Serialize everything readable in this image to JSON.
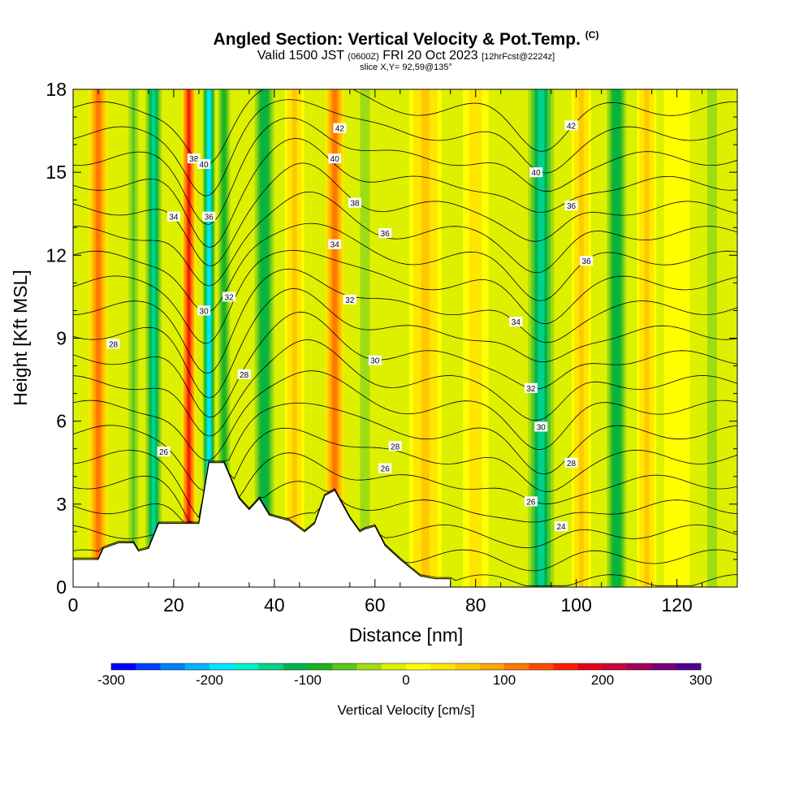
{
  "title": {
    "main": "Angled Section: Vertical Velocity & Pot.Temp.",
    "main_suffix": "(C)",
    "valid_pre": "Valid 1500 JST",
    "valid_z": "(0600Z)",
    "valid_date": "FRI 20 Oct 2023",
    "valid_fcst": "[12hrFcst@2224z]",
    "slice": "slice X,Y= 92,59@135°"
  },
  "chart_data": {
    "type": "heatmap",
    "xlabel": "Distance [nm]",
    "ylabel": "Height [Kft MSL]",
    "xlim": [
      0,
      132
    ],
    "ylim": [
      0,
      18
    ],
    "x_ticks": [
      0,
      20,
      40,
      60,
      80,
      100,
      120
    ],
    "y_ticks": [
      0,
      3,
      6,
      9,
      12,
      15,
      18
    ],
    "colorbar": {
      "label": "Vertical Velocity [cm/s]",
      "range": [
        -300,
        300
      ],
      "ticks": [
        -300,
        -200,
        -100,
        0,
        100,
        200,
        300
      ],
      "colors": [
        "#0000ff",
        "#0040ff",
        "#0080ff",
        "#00b4ff",
        "#00e5ff",
        "#00f0c8",
        "#00d28c",
        "#00b450",
        "#1eb41e",
        "#5ac81e",
        "#a0dc14",
        "#dcf000",
        "#ffff00",
        "#ffe600",
        "#ffc800",
        "#ffa500",
        "#ff7800",
        "#ff4b00",
        "#ff1e00",
        "#e6001e",
        "#c8003c",
        "#a0005a",
        "#780078",
        "#500096"
      ]
    },
    "velocity_bands": [
      {
        "x": 5,
        "w": 3,
        "v": 120
      },
      {
        "x": 12,
        "w": 2,
        "v": -60
      },
      {
        "x": 16,
        "w": 2.5,
        "v": -150
      },
      {
        "x": 23,
        "w": 2.2,
        "v": 160
      },
      {
        "x": 27,
        "w": 2,
        "v": -180
      },
      {
        "x": 30,
        "w": 2.5,
        "v": -100
      },
      {
        "x": 38,
        "w": 3,
        "v": -120
      },
      {
        "x": 44,
        "w": 3,
        "v": 60
      },
      {
        "x": 52,
        "w": 3,
        "v": 110
      },
      {
        "x": 58,
        "w": 3,
        "v": -50
      },
      {
        "x": 70,
        "w": 5,
        "v": 50
      },
      {
        "x": 80,
        "w": 4,
        "v": 40
      },
      {
        "x": 93,
        "w": 4,
        "v": -150
      },
      {
        "x": 101,
        "w": 3,
        "v": 60
      },
      {
        "x": 108,
        "w": 3,
        "v": -110
      },
      {
        "x": 114,
        "w": 3,
        "v": 60
      },
      {
        "x": 120,
        "w": 4,
        "v": 20
      },
      {
        "x": 127,
        "w": 3,
        "v": -40
      }
    ],
    "terrain": [
      [
        0,
        1.0
      ],
      [
        5,
        1.0
      ],
      [
        6,
        1.4
      ],
      [
        9,
        1.6
      ],
      [
        12,
        1.6
      ],
      [
        13,
        1.3
      ],
      [
        15,
        1.4
      ],
      [
        17,
        2.3
      ],
      [
        25,
        2.3
      ],
      [
        27,
        4.5
      ],
      [
        30,
        4.5
      ],
      [
        33,
        3.2
      ],
      [
        35,
        2.8
      ],
      [
        37,
        3.2
      ],
      [
        39,
        2.6
      ],
      [
        43,
        2.4
      ],
      [
        46,
        2.0
      ],
      [
        48,
        2.3
      ],
      [
        50,
        3.3
      ],
      [
        52,
        3.5
      ],
      [
        55,
        2.5
      ],
      [
        57,
        2.0
      ],
      [
        58,
        2.1
      ],
      [
        60,
        2.2
      ],
      [
        62,
        1.5
      ],
      [
        65,
        1.0
      ],
      [
        69,
        0.4
      ],
      [
        72,
        0.3
      ],
      [
        75,
        0.3
      ]
    ],
    "isentropes": [
      24,
      25,
      26,
      27,
      28,
      29,
      30,
      31,
      32,
      33,
      34,
      35,
      36,
      37,
      38,
      39,
      40,
      41,
      42,
      43
    ],
    "isentrope_labels": [
      {
        "x": 8,
        "y": 8.8,
        "text": "28"
      },
      {
        "x": 18,
        "y": 4.9,
        "text": "26"
      },
      {
        "x": 20,
        "y": 13.4,
        "text": "34"
      },
      {
        "x": 24,
        "y": 15.5,
        "text": "38"
      },
      {
        "x": 26,
        "y": 15.3,
        "text": "40"
      },
      {
        "x": 27,
        "y": 13.4,
        "text": "36"
      },
      {
        "x": 26,
        "y": 10.0,
        "text": "30"
      },
      {
        "x": 31,
        "y": 10.5,
        "text": "32"
      },
      {
        "x": 34,
        "y": 7.7,
        "text": "28"
      },
      {
        "x": 53,
        "y": 16.6,
        "text": "42"
      },
      {
        "x": 52,
        "y": 15.5,
        "text": "40"
      },
      {
        "x": 56,
        "y": 13.9,
        "text": "38"
      },
      {
        "x": 52,
        "y": 12.4,
        "text": "34"
      },
      {
        "x": 55,
        "y": 10.4,
        "text": "32"
      },
      {
        "x": 62,
        "y": 12.8,
        "text": "36"
      },
      {
        "x": 60,
        "y": 8.2,
        "text": "30"
      },
      {
        "x": 64,
        "y": 5.1,
        "text": "28"
      },
      {
        "x": 62,
        "y": 4.3,
        "text": "26"
      },
      {
        "x": 88,
        "y": 9.6,
        "text": "34"
      },
      {
        "x": 91,
        "y": 7.2,
        "text": "32"
      },
      {
        "x": 93,
        "y": 5.8,
        "text": "30"
      },
      {
        "x": 92,
        "y": 15.0,
        "text": "40"
      },
      {
        "x": 99,
        "y": 16.7,
        "text": "42"
      },
      {
        "x": 99,
        "y": 13.8,
        "text": "36"
      },
      {
        "x": 102,
        "y": 11.8,
        "text": "36"
      },
      {
        "x": 99,
        "y": 4.5,
        "text": "28"
      },
      {
        "x": 91,
        "y": 3.1,
        "text": "26"
      },
      {
        "x": 97,
        "y": 2.2,
        "text": "24"
      }
    ]
  }
}
